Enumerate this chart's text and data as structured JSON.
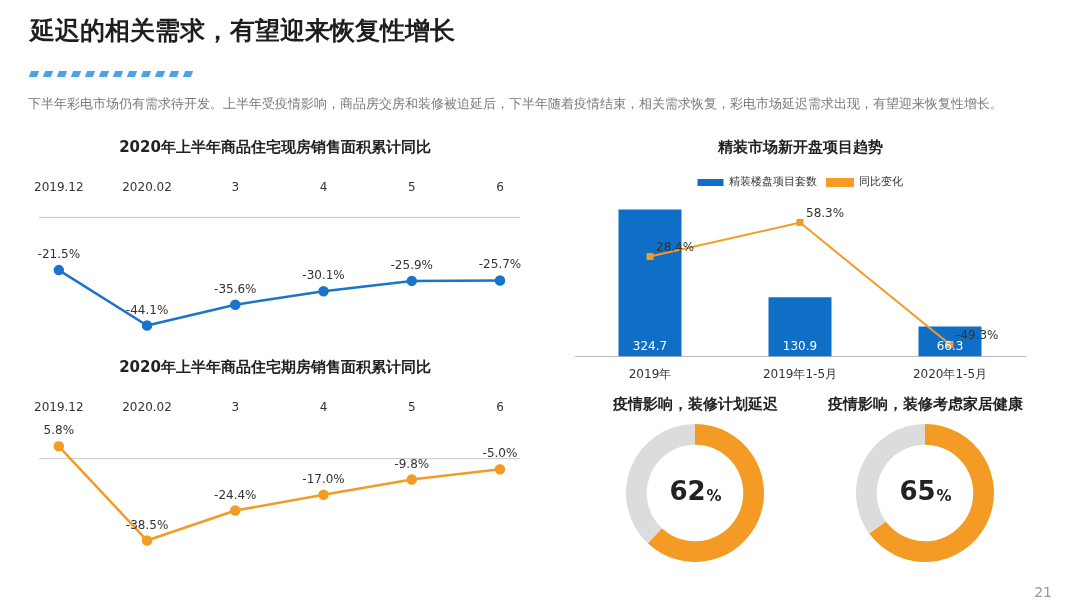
{
  "chart_data": [
    {
      "type": "other",
      "title": "延迟的相关需求，有望迎来恢复性增长",
      "subtitle": "下半年彩电市场仍有需求待开发。上半年受疫情影响，商品房交房和装修被迫延后，下半年随着疫情结束，相关需求恢复，彩电市场延迟需求出现，有望迎来恢复性增长。",
      "annotations": [
        "21"
      ]
    },
    {
      "type": "line",
      "title": "2020年上半年商品住宅现房销售面积累计同比",
      "categories": [
        "2019.12",
        "2020.02",
        "3",
        "4",
        "5",
        "6"
      ],
      "marker": "circle",
      "series": [
        {
          "color": "#1a74c9",
          "values": [
            -21.5,
            -44.1,
            -35.6,
            -30.1,
            -25.9,
            -25.7
          ],
          "value_labels": [
            "-21.5%",
            "-44.1%",
            "-35.6%",
            "-30.1%",
            "-25.9%",
            "-25.7%"
          ]
        }
      ]
    },
    {
      "type": "line",
      "title": "2020年上半年商品住宅期房销售面积累计同比",
      "categories": [
        "2019.12",
        "2020.02",
        "3",
        "4",
        "5",
        "6"
      ],
      "marker": "circle",
      "series": [
        {
          "color": "#f39b25",
          "values": [
            5.8,
            -38.5,
            -24.4,
            -17.0,
            -9.8,
            -5.0
          ],
          "value_labels": [
            "5.8%",
            "-38.5%",
            "-24.4%",
            "-17.0%",
            "-9.8%",
            "-5.0%"
          ]
        }
      ]
    },
    {
      "type": "bar",
      "title": "精装市场新开盘项目趋势",
      "categories": [
        "2019年",
        "2019年1-5月",
        "2020年1-5月"
      ],
      "legend": "top",
      "marker": "square",
      "series": [
        {
          "name": "精装楼盘项目套数",
          "color": "#0f6fc6",
          "values": [
            324.7,
            130.9,
            66.3
          ],
          "value_labels": [
            "324.7",
            "130.9",
            "66.3"
          ]
        },
        {
          "name": "同比变化",
          "type": "line",
          "axis": "y2",
          "color": "#f39b25",
          "values": [
            28.4,
            58.3,
            -49.3
          ],
          "value_labels": [
            "28.4%",
            "58.3%",
            "-49.3%"
          ]
        }
      ]
    },
    {
      "type": "donut",
      "title": "疫情影响，装修计划延迟",
      "categories": [
        null,
        null
      ],
      "values": [
        62,
        38
      ],
      "colors": [
        "#f39b25",
        "#dcdcdc"
      ],
      "value_labels": [
        "62%",
        null
      ]
    },
    {
      "type": "donut",
      "title": "疫情影响，装修考虑家居健康",
      "categories": [
        null,
        null
      ],
      "values": [
        65,
        35
      ],
      "colors": [
        "#f39b25",
        "#dcdcdc"
      ],
      "value_labels": [
        "65%",
        null
      ]
    }
  ]
}
